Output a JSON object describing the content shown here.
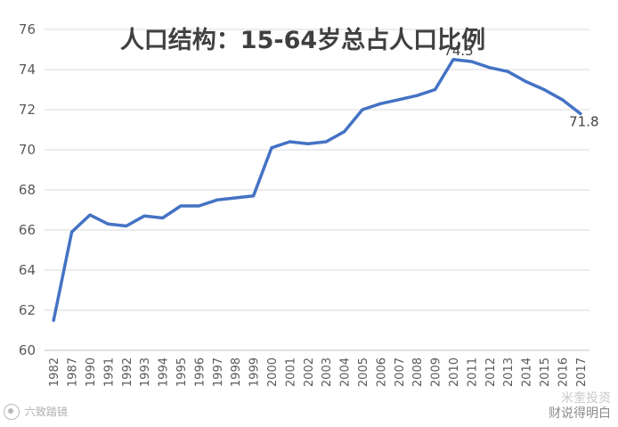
{
  "chart_data": {
    "type": "line",
    "title": "人口结构：15-64岁总占人口比例",
    "categories": [
      "1982",
      "1987",
      "1990",
      "1991",
      "1992",
      "1993",
      "1994",
      "1995",
      "1996",
      "1997",
      "1998",
      "1999",
      "2000",
      "2001",
      "2002",
      "2003",
      "2004",
      "2005",
      "2006",
      "2007",
      "2008",
      "2009",
      "2010",
      "2011",
      "2012",
      "2013",
      "2014",
      "2015",
      "2016",
      "2017"
    ],
    "values": [
      61.5,
      65.9,
      66.75,
      66.3,
      66.2,
      66.7,
      66.6,
      67.2,
      67.2,
      67.5,
      67.6,
      67.7,
      70.1,
      70.4,
      70.3,
      70.4,
      70.9,
      72.0,
      72.3,
      72.5,
      72.7,
      73.0,
      74.5,
      74.4,
      74.1,
      73.9,
      73.4,
      73.0,
      72.5,
      71.8
    ],
    "ylim": [
      60,
      76
    ],
    "yticks": [
      60,
      62,
      64,
      66,
      68,
      70,
      72,
      74,
      76
    ],
    "annotations": [
      {
        "index": 22,
        "text": "74.5"
      },
      {
        "index": 29,
        "text": "71.8"
      }
    ],
    "grid": true,
    "legend": "none",
    "line_color": "#4472C4"
  },
  "watermark": {
    "right_line1": "米奎投资",
    "right_line2": "财说得明白",
    "left": "六致踏镜"
  }
}
